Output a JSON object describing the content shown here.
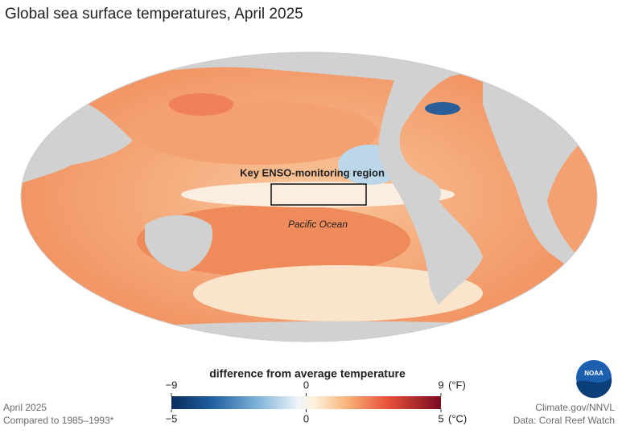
{
  "title": "Global sea surface temperatures, April 2025",
  "map": {
    "annotations": {
      "region_label": "Key ENSO-monitoring region",
      "ocean_label": "Pacific Ocean"
    }
  },
  "legend": {
    "title": "difference from average temperature",
    "fahrenheit": {
      "lim": [
        -9,
        9
      ],
      "ticks": [
        {
          "value": -9,
          "label": "−9"
        },
        0,
        9
      ],
      "unit": "(°F)"
    },
    "celsius": {
      "lim": [
        -5,
        5
      ],
      "ticks": [
        {
          "value": -5,
          "label": "−5"
        },
        0,
        5
      ],
      "unit": "(°C)"
    }
  },
  "footer": {
    "date": "April 2025",
    "baseline": "Compared to 1985–1993*",
    "credit": "Climate.gov/NNVL",
    "source": "Data: Coral Reef Watch"
  },
  "logo": "NOAA"
}
